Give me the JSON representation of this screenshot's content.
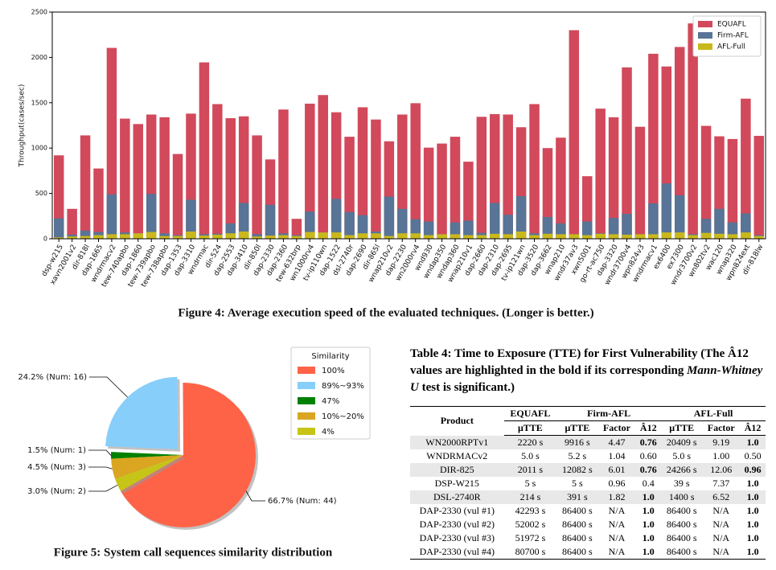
{
  "chart_data": [
    {
      "type": "bar",
      "ylabel": "Throughput(cases/sec)",
      "categories": [
        "dsp-w215",
        "xavn2001v2",
        "dir-818l",
        "dap-1665",
        "wndrmacv2",
        "tew-740apbo",
        "dap-1860",
        "tew-739apbo",
        "tew-738apbo",
        "dap-1353",
        "dap-3310",
        "wndrmac",
        "dir-524",
        "dap-2553",
        "dap-3410",
        "dir-850l",
        "dap-2330",
        "dap-2360",
        "tew-632brp",
        "wn1000rv4",
        "tv-ip110wn",
        "dap-1522",
        "dsl-2740r",
        "dap-2690",
        "dir-865l",
        "wnap210v2",
        "dap-2230",
        "wn2000rv4",
        "wnd930",
        "wndap350",
        "wndap360",
        "wnap210v1",
        "dap-2660",
        "dap-2310",
        "dap-2695",
        "tv-ip121wn",
        "dap-3520",
        "dap-3662",
        "wnap210",
        "wndr37av3",
        "xwn5001",
        "go-rt-ac750",
        "dap-3320",
        "wndr3700v4",
        "wpn824v3",
        "wndrmacv1",
        "ex6400",
        "ex7300",
        "wndr3700v2",
        "wn802tv2",
        "wac120",
        "wnap320",
        "wpn824ext",
        "dir-818lw"
      ],
      "series": [
        {
          "name": "EQUAFL",
          "color": "#d1495b",
          "values": [
            920,
            330,
            1140,
            775,
            2105,
            1325,
            1265,
            1370,
            1340,
            935,
            1380,
            1945,
            1485,
            1330,
            1350,
            1140,
            875,
            1425,
            220,
            1490,
            1585,
            1395,
            1125,
            1450,
            1315,
            1075,
            1370,
            1495,
            1005,
            1050,
            1125,
            850,
            1345,
            1375,
            1370,
            1230,
            1485,
            1000,
            1115,
            2300,
            690,
            1435,
            1340,
            1890,
            1235,
            2040,
            1900,
            2115,
            2375,
            1245,
            1130,
            1100,
            1545,
            1135
          ]
        },
        {
          "name": "Firm-AFL",
          "color": "#587496",
          "values": [
            225,
            45,
            90,
            75,
            490,
            70,
            60,
            495,
            60,
            40,
            430,
            50,
            55,
            170,
            395,
            50,
            375,
            60,
            40,
            300,
            70,
            440,
            295,
            260,
            80,
            465,
            330,
            215,
            190,
            50,
            180,
            200,
            65,
            395,
            265,
            470,
            60,
            240,
            170,
            50,
            190,
            60,
            230,
            275,
            50,
            390,
            610,
            480,
            50,
            220,
            330,
            180,
            280,
            40
          ]
        },
        {
          "name": "AFL-Full",
          "color": "#c9b81c",
          "values": [
            15,
            25,
            30,
            40,
            50,
            50,
            60,
            75,
            30,
            30,
            80,
            35,
            45,
            60,
            80,
            25,
            35,
            40,
            30,
            75,
            70,
            70,
            40,
            60,
            60,
            30,
            60,
            60,
            40,
            50,
            50,
            40,
            40,
            55,
            50,
            80,
            40,
            55,
            50,
            50,
            40,
            55,
            50,
            45,
            50,
            50,
            70,
            70,
            40,
            65,
            55,
            50,
            70,
            30
          ]
        }
      ],
      "ylim": [
        0,
        2500
      ],
      "yticks": [
        0,
        500,
        1000,
        1500,
        2000,
        2500
      ],
      "legend": "upper right",
      "caption": "Figure 4: Average execution speed of the evaluated techniques. (Longer is better.)"
    },
    {
      "type": "pie",
      "legend_title": "Similarity",
      "categories": [
        "100%",
        "89%~93%",
        "47%",
        "10%~20%",
        "4%"
      ],
      "values": [
        66.7,
        24.2,
        1.5,
        4.5,
        3.0
      ],
      "value_labels": [
        "66.7% (Num:  44)",
        "24.2% (Num:  16)",
        "1.5% (Num:  1)",
        "4.5% (Num:  3)",
        "3.0% (Num:  2)"
      ],
      "colors": [
        "#ff6347",
        "#87cefa",
        "#008000",
        "#daa520",
        "#c7c418"
      ],
      "explode": [
        0,
        1,
        0,
        0,
        0
      ],
      "caption": "Figure 5: System call sequences similarity distribution"
    }
  ],
  "table": {
    "caption": [
      "Table 4: Time to Exposure (TTE) for First Vulnerability (The Â12 values are highlighted in the bold if its corresponding ",
      "Mann-Whitney U",
      " test is significant.)"
    ],
    "header": [
      "Product",
      "EQUAFL",
      "Firm-AFL",
      "AFL-Full"
    ],
    "subheader": [
      "μTTE",
      "μTTE",
      "Factor",
      "Â12",
      "μTTE",
      "Factor",
      "Â12"
    ],
    "rows": [
      {
        "cells": [
          "WN2000RPTv1",
          "2220 s",
          "9916 s",
          "4.47",
          "0.76",
          "20409 s",
          "9.19",
          "1.0"
        ],
        "bold": [
          4,
          7
        ]
      },
      {
        "cells": [
          "WNDRMACv2",
          "5.0 s",
          "5.2 s",
          "1.04",
          "0.60",
          "5.0 s",
          "1.00",
          "0.50"
        ],
        "bold": []
      },
      {
        "cells": [
          "DIR-825",
          "2011 s",
          "12082 s",
          "6.01",
          "0.76",
          "24266 s",
          "12.06",
          "0.96"
        ],
        "bold": [
          4,
          7
        ]
      },
      {
        "cells": [
          "DSP-W215",
          "5 s",
          "5 s",
          "0.96",
          "0.4",
          "39 s",
          "7.37",
          "1.0"
        ],
        "bold": [
          7
        ]
      },
      {
        "cells": [
          "DSL-2740R",
          "214 s",
          "391 s",
          "1.82",
          "1.0",
          "1400 s",
          "6.52",
          "1.0"
        ],
        "bold": [
          4,
          7
        ]
      },
      {
        "cells": [
          "DAP-2330 (vul #1)",
          "42293 s",
          "86400 s",
          "N/A",
          "1.0",
          "86400 s",
          "N/A",
          "1.0"
        ],
        "bold": [
          4,
          7
        ]
      },
      {
        "cells": [
          "DAP-2330 (vul #2)",
          "52002 s",
          "86400 s",
          "N/A",
          "1.0",
          "86400 s",
          "N/A",
          "1.0"
        ],
        "bold": [
          4,
          7
        ]
      },
      {
        "cells": [
          "DAP-2330 (vul #3)",
          "51972 s",
          "86400 s",
          "N/A",
          "1.0",
          "86400 s",
          "N/A",
          "1.0"
        ],
        "bold": [
          4,
          7
        ]
      },
      {
        "cells": [
          "DAP-2330 (vul #4)",
          "80700 s",
          "86400 s",
          "N/A",
          "1.0",
          "86400 s",
          "N/A",
          "1.0"
        ],
        "bold": [
          4,
          7
        ]
      }
    ]
  }
}
